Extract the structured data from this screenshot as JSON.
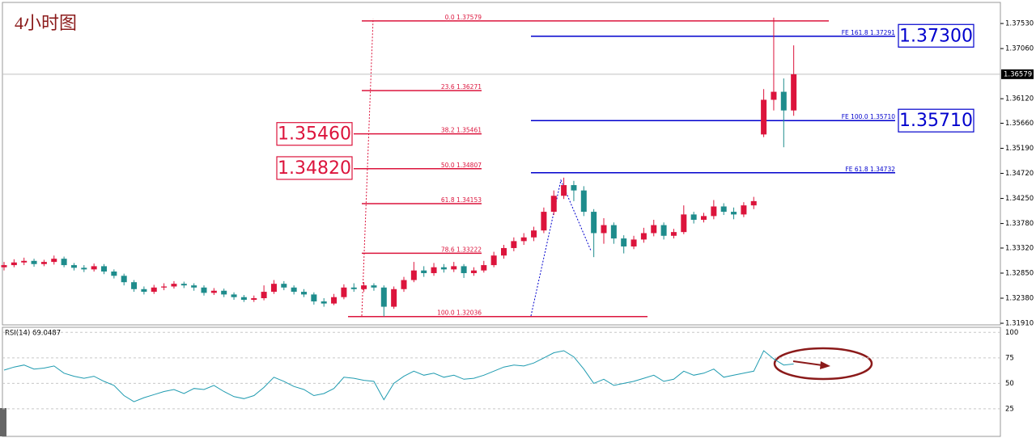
{
  "chart_data": [
    {
      "type": "candlestick",
      "title": "4小时图",
      "up_color": "#dc143c",
      "down_color": "#1e8c8c",
      "open": [
        1.3296,
        1.33,
        1.3305,
        1.3308,
        1.3302,
        1.3306,
        1.3312,
        1.33,
        1.3295,
        1.3292,
        1.3298,
        1.3288,
        1.328,
        1.3268,
        1.3255,
        1.325,
        1.3258,
        1.326,
        1.3265,
        1.3262,
        1.3258,
        1.3248,
        1.3252,
        1.3245,
        1.324,
        1.3235,
        1.3238,
        1.325,
        1.3265,
        1.3258,
        1.325,
        1.3245,
        1.3232,
        1.3228,
        1.324,
        1.3258,
        1.3255,
        1.3262,
        1.3258,
        1.3222,
        1.3255,
        1.3272,
        1.329,
        1.3285,
        1.3296,
        1.3292,
        1.3298,
        1.3285,
        1.329,
        1.33,
        1.3318,
        1.3332,
        1.3345,
        1.3352,
        1.3365,
        1.34,
        1.343,
        1.345,
        1.344,
        1.34,
        1.336,
        1.3375,
        1.335,
        1.3335,
        1.3348,
        1.336,
        1.3375,
        1.3355,
        1.3362,
        1.3395,
        1.3385,
        1.3392,
        1.341,
        1.34,
        1.3395,
        1.3412,
        1.3545,
        1.361,
        1.3625,
        1.359
      ],
      "high": [
        1.3306,
        1.3311,
        1.3314,
        1.3312,
        1.331,
        1.3318,
        1.3316,
        1.3304,
        1.33,
        1.3303,
        1.3302,
        1.3292,
        1.3284,
        1.3272,
        1.326,
        1.3263,
        1.3266,
        1.327,
        1.3269,
        1.3266,
        1.3262,
        1.3257,
        1.3256,
        1.3249,
        1.3244,
        1.3243,
        1.3262,
        1.3272,
        1.327,
        1.3262,
        1.3255,
        1.3249,
        1.3238,
        1.3246,
        1.3264,
        1.3266,
        1.3268,
        1.3266,
        1.3262,
        1.326,
        1.3278,
        1.3306,
        1.3298,
        1.3304,
        1.3302,
        1.3306,
        1.3302,
        1.3296,
        1.3308,
        1.3325,
        1.3338,
        1.3352,
        1.336,
        1.3372,
        1.3408,
        1.344,
        1.3464,
        1.3458,
        1.3448,
        1.3405,
        1.3388,
        1.338,
        1.3356,
        1.3355,
        1.337,
        1.3385,
        1.338,
        1.3368,
        1.3412,
        1.34,
        1.3398,
        1.3422,
        1.3416,
        1.3408,
        1.3418,
        1.3428,
        1.363,
        1.3764,
        1.365,
        1.3712
      ],
      "low": [
        1.329,
        1.3296,
        1.33,
        1.3297,
        1.3298,
        1.3301,
        1.3296,
        1.329,
        1.3287,
        1.3288,
        1.3283,
        1.3275,
        1.3262,
        1.325,
        1.3245,
        1.3246,
        1.3253,
        1.3256,
        1.3257,
        1.3252,
        1.3243,
        1.3244,
        1.324,
        1.3235,
        1.3231,
        1.3231,
        1.3234,
        1.3246,
        1.3253,
        1.3245,
        1.324,
        1.3226,
        1.3222,
        1.3225,
        1.3236,
        1.325,
        1.325,
        1.3252,
        1.3204,
        1.3218,
        1.325,
        1.3268,
        1.3278,
        1.328,
        1.3286,
        1.3287,
        1.3276,
        1.328,
        1.3286,
        1.3296,
        1.3312,
        1.3326,
        1.3338,
        1.3345,
        1.336,
        1.3394,
        1.3424,
        1.342,
        1.3392,
        1.3315,
        1.334,
        1.334,
        1.3322,
        1.333,
        1.3342,
        1.3354,
        1.3348,
        1.335,
        1.3358,
        1.3378,
        1.338,
        1.3386,
        1.3394,
        1.3386,
        1.339,
        1.3405,
        1.354,
        1.359,
        1.3521,
        1.358
      ],
      "close": [
        1.33,
        1.3305,
        1.3308,
        1.3302,
        1.3306,
        1.3312,
        1.33,
        1.3295,
        1.3292,
        1.3298,
        1.3288,
        1.328,
        1.3268,
        1.3255,
        1.325,
        1.3258,
        1.326,
        1.3265,
        1.3262,
        1.3258,
        1.3248,
        1.3252,
        1.3245,
        1.324,
        1.3235,
        1.3238,
        1.325,
        1.3265,
        1.3258,
        1.325,
        1.3245,
        1.3232,
        1.3228,
        1.324,
        1.3258,
        1.3255,
        1.3262,
        1.3258,
        1.3222,
        1.3255,
        1.3272,
        1.329,
        1.3285,
        1.3296,
        1.3292,
        1.3298,
        1.3285,
        1.329,
        1.33,
        1.3318,
        1.3332,
        1.3345,
        1.3352,
        1.3365,
        1.34,
        1.343,
        1.345,
        1.344,
        1.34,
        1.336,
        1.3375,
        1.335,
        1.3335,
        1.3348,
        1.336,
        1.3375,
        1.3355,
        1.3362,
        1.3395,
        1.3385,
        1.3392,
        1.341,
        1.34,
        1.3395,
        1.3412,
        1.342,
        1.361,
        1.3625,
        1.359,
        1.36579
      ],
      "ylim": [
        1.3188,
        1.3791
      ],
      "yticks": [
        {
          "value": 1.3753,
          "label": "1.37530"
        },
        {
          "value": 1.3706,
          "label": "1.37060"
        },
        {
          "value": 1.3612,
          "label": "1.36120"
        },
        {
          "value": 1.3566,
          "label": "1.35660"
        },
        {
          "value": 1.3519,
          "label": "1.35190"
        },
        {
          "value": 1.3472,
          "label": "1.34720"
        },
        {
          "value": 1.3425,
          "label": "1.34250"
        },
        {
          "value": 1.3378,
          "label": "1.33780"
        },
        {
          "value": 1.3332,
          "label": "1.33320"
        },
        {
          "value": 1.3285,
          "label": "1.32850"
        },
        {
          "value": 1.3238,
          "label": "1.32380"
        },
        {
          "value": 1.3191,
          "label": "1.31910"
        }
      ],
      "current_price": {
        "value": 1.36579,
        "label": "1.36579"
      },
      "fib_color": "#dc143c",
      "fib_levels": [
        {
          "value": 1.37579,
          "label": "0.0  1.37579"
        },
        {
          "value": 1.36271,
          "label": "23.6  1.36271"
        },
        {
          "value": 1.35461,
          "label": "38.2  1.35461"
        },
        {
          "value": 1.34807,
          "label": "50.0  1.34807"
        },
        {
          "value": 1.34153,
          "label": "61.8  1.34153"
        },
        {
          "value": 1.33222,
          "label": "78.6  1.33222"
        },
        {
          "value": 1.32036,
          "label": "100.0  1.32036"
        }
      ],
      "fe_color": "#0000cd",
      "fe_levels": [
        {
          "value": 1.37291,
          "label": "FE 161.8  1.37291"
        },
        {
          "value": 1.3571,
          "label": "FE 100.0  1.35710"
        },
        {
          "value": 1.34732,
          "label": "FE 61.8  1.34732"
        }
      ],
      "price_boxes": [
        {
          "value": 1.373,
          "label": "1.37300",
          "color": "#0000cd"
        },
        {
          "value": 1.3571,
          "label": "1.35710",
          "color": "#0000cd"
        },
        {
          "value": 1.3546,
          "label": "1.35460",
          "color": "#dc143c"
        },
        {
          "value": 1.3482,
          "label": "1.34820",
          "color": "#dc143c"
        }
      ]
    },
    {
      "type": "line",
      "title": "RSI(14) 69.0487",
      "color": "#1f9bb0",
      "values": [
        63,
        66,
        68,
        64,
        65,
        67,
        60,
        57,
        55,
        57,
        52,
        48,
        38,
        32,
        36,
        39,
        42,
        44,
        40,
        45,
        44,
        48,
        42,
        37,
        35,
        38,
        46,
        56,
        52,
        47,
        44,
        38,
        40,
        45,
        56,
        55,
        53,
        52,
        34,
        50,
        57,
        62,
        58,
        60,
        56,
        58,
        54,
        55,
        58,
        62,
        66,
        68,
        67,
        70,
        75,
        80,
        82,
        76,
        64,
        50,
        54,
        48,
        50,
        52,
        55,
        58,
        52,
        54,
        62,
        58,
        60,
        64,
        56,
        58,
        60,
        62,
        82,
        74,
        68,
        69.0487
      ],
      "ylim": [
        -2,
        105
      ],
      "yticks": [
        25,
        50,
        75,
        100
      ],
      "grid": true
    }
  ]
}
